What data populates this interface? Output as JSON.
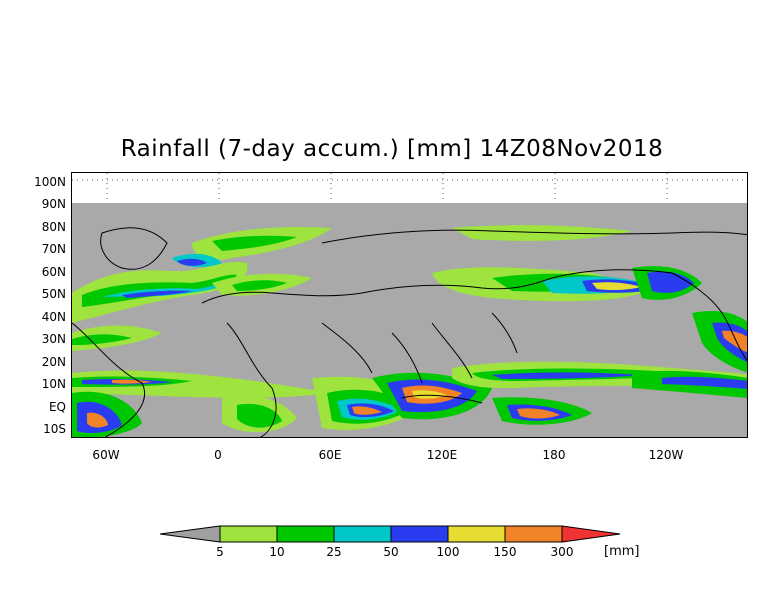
{
  "title": "Rainfall (7-day accum.) [mm] 14Z08Nov2018",
  "lat_labels": [
    "100N",
    "90N",
    "80N",
    "70N",
    "60N",
    "50N",
    "40N",
    "30N",
    "20N",
    "10N",
    "EQ",
    "10S"
  ],
  "lon_labels": [
    "60W",
    "0",
    "60E",
    "120E",
    "180",
    "120W"
  ],
  "colorbar": {
    "unit": "[mm]",
    "thresholds": [
      "5",
      "10",
      "25",
      "50",
      "100",
      "150",
      "300"
    ],
    "colors": [
      "#a0a0a0",
      "#9ee33e",
      "#00c800",
      "#00c8c8",
      "#2a3cf0",
      "#e6dc32",
      "#f08228",
      "#f03232"
    ]
  },
  "colors": {
    "missing": "#a9a9a9",
    "land_bg": "#a9a9a9",
    "coastline": "#000000"
  }
}
